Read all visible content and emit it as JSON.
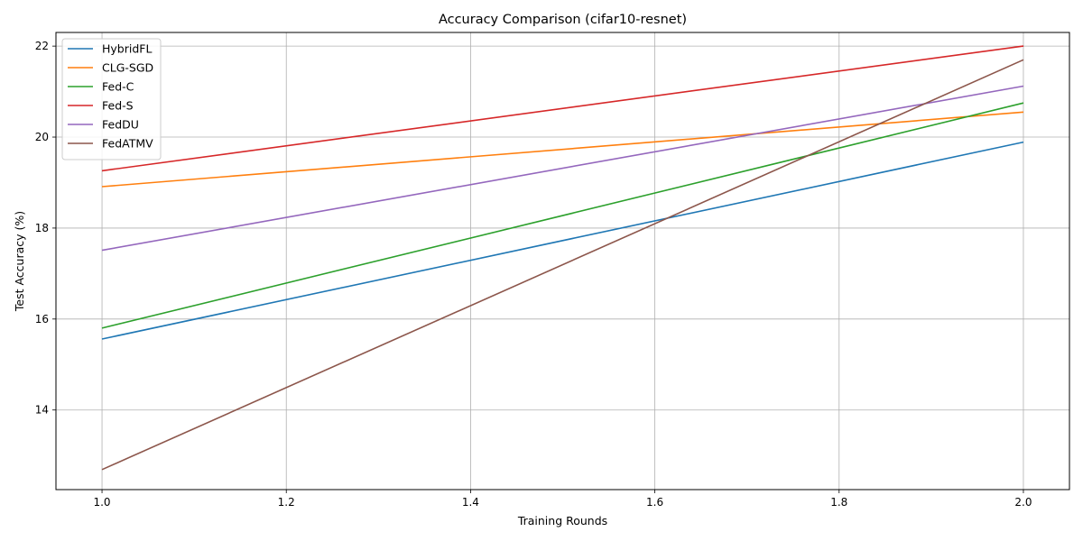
{
  "chart_data": {
    "type": "line",
    "title": "Accuracy Comparison (cifar10-resnet)",
    "xlabel": "Training Rounds",
    "ylabel": "Test Accuracy (%)",
    "x": [
      1.0,
      2.0
    ],
    "xlim": [
      0.95,
      2.05
    ],
    "ylim": [
      12.25,
      22.3
    ],
    "xticks": [
      1.0,
      1.2,
      1.4,
      1.6,
      1.8,
      2.0
    ],
    "xtick_labels": [
      "1.0",
      "1.2",
      "1.4",
      "1.6",
      "1.8",
      "2.0"
    ],
    "yticks": [
      14,
      16,
      18,
      20,
      22
    ],
    "ytick_labels": [
      "14",
      "16",
      "18",
      "20",
      "22"
    ],
    "grid": true,
    "legend_position": "top-left",
    "series": [
      {
        "name": "HybridFL",
        "color": "#1f77b4",
        "values": [
          15.56,
          19.89
        ]
      },
      {
        "name": "CLG-SGD",
        "color": "#ff7f0e",
        "values": [
          18.91,
          20.55
        ]
      },
      {
        "name": "Fed-C",
        "color": "#2ca02c",
        "values": [
          15.8,
          20.75
        ]
      },
      {
        "name": "Fed-S",
        "color": "#d62728",
        "values": [
          19.26,
          22.0
        ]
      },
      {
        "name": "FedDU",
        "color": "#9467bd",
        "values": [
          17.51,
          21.12
        ]
      },
      {
        "name": "FedATMV",
        "color": "#8c564b",
        "values": [
          12.69,
          21.7
        ]
      }
    ]
  }
}
